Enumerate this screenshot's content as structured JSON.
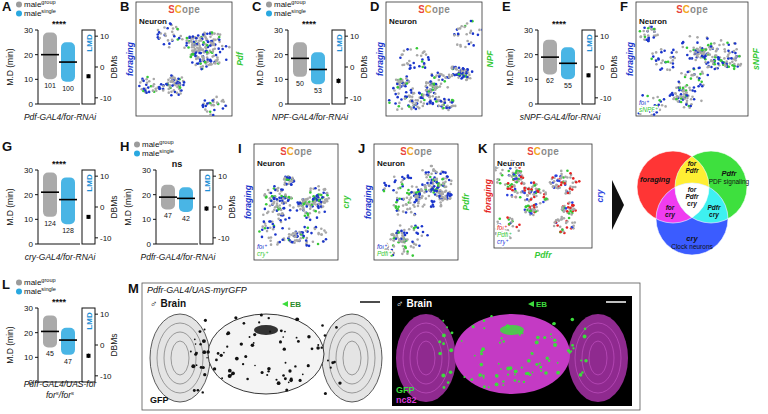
{
  "chart_data": [
    {
      "panel": "A",
      "type": "strip",
      "title": [
        [
          {
            "text": "Pdf-GAL4/for-RNAi"
          }
        ]
      ],
      "y_label": "M.D (min)",
      "y2_label": "DBMs",
      "y2_title": "LMD",
      "legend": "top",
      "ylim": [
        0,
        30
      ],
      "yticks": [
        0,
        10,
        20,
        30
      ],
      "y2lim": [
        -12,
        12
      ],
      "y2ticks": [
        -10,
        0,
        10
      ],
      "significance": "****",
      "series": [
        {
          "name": "male",
          "sup": "group",
          "color": "#9b9b9b",
          "mean": 20,
          "min": 10,
          "max": 29,
          "n": 101
        },
        {
          "name": "male",
          "sup": "single",
          "color": "#29a8e0",
          "mean": 17,
          "min": 9,
          "max": 25,
          "n": 100
        }
      ],
      "lmd": {
        "value": -3,
        "error": 0.6
      }
    },
    {
      "panel": "C",
      "type": "strip",
      "title": [
        [
          {
            "text": "NPF-GAL4/for-RNAi"
          }
        ]
      ],
      "y_label": "M.D (min)",
      "y2_label": "DBMs",
      "y2_title": "LMD",
      "legend": "top",
      "ylim": [
        0,
        30
      ],
      "yticks": [
        0,
        10,
        20,
        30
      ],
      "y2lim": [
        -12,
        12
      ],
      "y2ticks": [
        -10,
        0,
        10
      ],
      "significance": "****",
      "series": [
        {
          "name": "male",
          "sup": "group",
          "color": "#9b9b9b",
          "mean": 18.5,
          "min": 11,
          "max": 25,
          "n": 50
        },
        {
          "name": "male",
          "sup": "single",
          "color": "#29a8e0",
          "mean": 14,
          "min": 8,
          "max": 21,
          "n": 53
        }
      ],
      "lmd": {
        "value": -4.5,
        "error": 0.8
      }
    },
    {
      "panel": "E",
      "type": "strip",
      "title": [
        [
          {
            "text": "sNPF-GAL4/for-RNAi"
          }
        ]
      ],
      "y_label": "M.D (min)",
      "y2_label": "DBMs",
      "y2_title": "LMD",
      "ylim": [
        0,
        30
      ],
      "yticks": [
        0,
        10,
        20,
        30
      ],
      "y2lim": [
        -12,
        12
      ],
      "y2ticks": [
        -10,
        0,
        10
      ],
      "significance": "****",
      "series": [
        {
          "name": "male",
          "sup": "group",
          "color": "#9b9b9b",
          "mean": 19,
          "min": 12,
          "max": 26,
          "n": 62
        },
        {
          "name": "male",
          "sup": "single",
          "color": "#29a8e0",
          "mean": 16.5,
          "min": 10,
          "max": 23,
          "n": 55
        }
      ],
      "lmd": {
        "value": -2.7,
        "error": 0.6
      }
    },
    {
      "panel": "G",
      "type": "strip",
      "title": [
        [
          {
            "text": "cry-GAL4/for-RNAi"
          }
        ]
      ],
      "y_label": "M.D (min)",
      "y2_label": "DBMs",
      "y2_title": "LMD",
      "ylim": [
        0,
        30
      ],
      "yticks": [
        0,
        10,
        20,
        30
      ],
      "y2lim": [
        -12,
        12
      ],
      "y2ticks": [
        -10,
        0,
        10
      ],
      "significance": "****",
      "series": [
        {
          "name": "male",
          "sup": "group",
          "color": "#9b9b9b",
          "mean": 21,
          "min": 11,
          "max": 29,
          "n": 124
        },
        {
          "name": "male",
          "sup": "single",
          "color": "#29a8e0",
          "mean": 18,
          "min": 8,
          "max": 27,
          "n": 128
        }
      ],
      "lmd": {
        "value": -3.2,
        "error": 0.6
      }
    },
    {
      "panel": "H",
      "type": "strip",
      "title": [
        [
          {
            "text": "Pdfr-GAL4/for-RNAi"
          }
        ]
      ],
      "y_label": "M.D (min)",
      "y2_label": "DBMs",
      "y2_title": "LMD",
      "legend": "top",
      "ylim": [
        0,
        30
      ],
      "yticks": [
        0,
        10,
        20,
        30
      ],
      "y2lim": [
        -12,
        12
      ],
      "y2ticks": [
        -10,
        0,
        10
      ],
      "significance": "ns",
      "series": [
        {
          "name": "male",
          "sup": "group",
          "color": "#9b9b9b",
          "mean": 19,
          "min": 14,
          "max": 24,
          "n": 47
        },
        {
          "name": "male",
          "sup": "single",
          "color": "#29a8e0",
          "mean": 18.5,
          "min": 13,
          "max": 23,
          "n": 42
        }
      ],
      "lmd": {
        "value": -0.5,
        "error": 0.7
      }
    },
    {
      "panel": "L",
      "type": "strip",
      "title": [
        [
          {
            "text": "Pdfr-GAL4/UAS-for"
          }
        ],
        [
          {
            "text": "for"
          },
          {
            "sup": "s"
          },
          {
            "text": "/for"
          },
          {
            "sup": "s"
          }
        ]
      ],
      "y_label": "M.D (min)",
      "y2_label": "DBMs",
      "y2_title": "LMD",
      "legend": "top",
      "ylim": [
        0,
        30
      ],
      "yticks": [
        0,
        10,
        20,
        30
      ],
      "y2lim": [
        -12,
        12
      ],
      "y2ticks": [
        -10,
        0,
        10
      ],
      "significance": "****",
      "series": [
        {
          "name": "male",
          "sup": "group",
          "color": "#9b9b9b",
          "mean": 20.5,
          "min": 14,
          "max": 27,
          "n": 45
        },
        {
          "name": "male",
          "sup": "single",
          "color": "#29a8e0",
          "mean": 17,
          "min": 11,
          "max": 22,
          "n": 47
        }
      ],
      "lmd": {
        "value": -3.5,
        "error": 0.7
      }
    }
  ],
  "scope_panels": [
    {
      "panel": "B",
      "logo": "SCope",
      "cell_type": "Neuron",
      "genes": [
        {
          "name": "foraging",
          "color": "#1a35cc"
        },
        {
          "name": "Pdf",
          "color": "#36c936"
        }
      ]
    },
    {
      "panel": "D",
      "logo": "SCope",
      "cell_type": "Neuron",
      "genes": [
        {
          "name": "foraging",
          "color": "#1a35cc"
        },
        {
          "name": "NPF",
          "color": "#36c936"
        }
      ]
    },
    {
      "panel": "F",
      "logo": "SCope",
      "cell_type": "Neuron",
      "genes": [
        {
          "name": "foraging",
          "color": "#1a35cc"
        },
        {
          "name": "sNPF",
          "color": "#36c936"
        }
      ],
      "inset": [
        {
          "text": "for",
          "sup": "+",
          "color": "#1a35cc"
        },
        {
          "text": "sNPF",
          "sup": "+",
          "color": "#36c936"
        }
      ]
    },
    {
      "panel": "I",
      "logo": "SCope",
      "cell_type": "Neuron",
      "genes": [
        {
          "name": "foraging",
          "color": "#1a35cc"
        },
        {
          "name": "cry",
          "color": "#36c936"
        }
      ],
      "inset": [
        {
          "text": "for",
          "sup": "+",
          "color": "#1a35cc"
        },
        {
          "text": "cry",
          "sup": "+",
          "color": "#36c936"
        }
      ]
    },
    {
      "panel": "J",
      "logo": "SCope",
      "cell_type": "Neuron",
      "genes": [
        {
          "name": "foraging",
          "color": "#1a35cc"
        },
        {
          "name": "Pdfr",
          "color": "#36c936"
        }
      ],
      "inset": [
        {
          "text": "for",
          "sup": "+",
          "color": "#1a35cc"
        },
        {
          "text": "Pdfr",
          "sup": "+",
          "color": "#36c936"
        }
      ]
    },
    {
      "panel": "K",
      "logo": "SCope",
      "cell_type": "Neuron",
      "genes": [
        {
          "name": "foraging",
          "color": "#e52222"
        },
        {
          "name": "cry",
          "color": "#2a40e0"
        },
        {
          "name": "Pdfr",
          "color": "#36c936"
        }
      ],
      "inset": [
        {
          "text": "for",
          "sup": "+",
          "color": "#e52222"
        },
        {
          "text": "Pdfr",
          "sup": "+",
          "color": "#36c936"
        },
        {
          "text": "cry",
          "sup": "+",
          "color": "#2a40e0"
        }
      ]
    }
  ],
  "venn": {
    "circles": [
      {
        "name": "foraging",
        "color": "#ff3535"
      },
      {
        "name": "Pdfr",
        "note": "PDF signaling",
        "color": "#3ee03e"
      },
      {
        "name": "cry",
        "note": "Clock neurons",
        "color": "#3b5cff"
      }
    ],
    "intersections": [
      {
        "lines": [
          "for",
          "Pdfr"
        ],
        "color": "#ffee33"
      },
      {
        "lines": [
          "for",
          "cry"
        ],
        "color": "#f03cf0"
      },
      {
        "lines": [
          "Pdfr",
          "cry"
        ],
        "color": "#3ef0f0"
      },
      {
        "lines": [
          "for",
          "Pdfr",
          "cry"
        ],
        "color": "#ffffff"
      }
    ]
  },
  "micrograph": {
    "panel": "M",
    "title": "Pdfr-GAL4/UAS-myrGFP",
    "images": [
      {
        "sex": "♂",
        "region": "Brain",
        "landmark": "EB",
        "channels": [
          {
            "name": "GFP",
            "color": "#111111"
          }
        ]
      },
      {
        "sex": "♂",
        "region": "Brain",
        "landmark": "EB",
        "channels": [
          {
            "name": "GFP",
            "color": "#3ddc3d"
          },
          {
            "name": "nc82",
            "color": "#d93ad9"
          }
        ]
      }
    ]
  }
}
